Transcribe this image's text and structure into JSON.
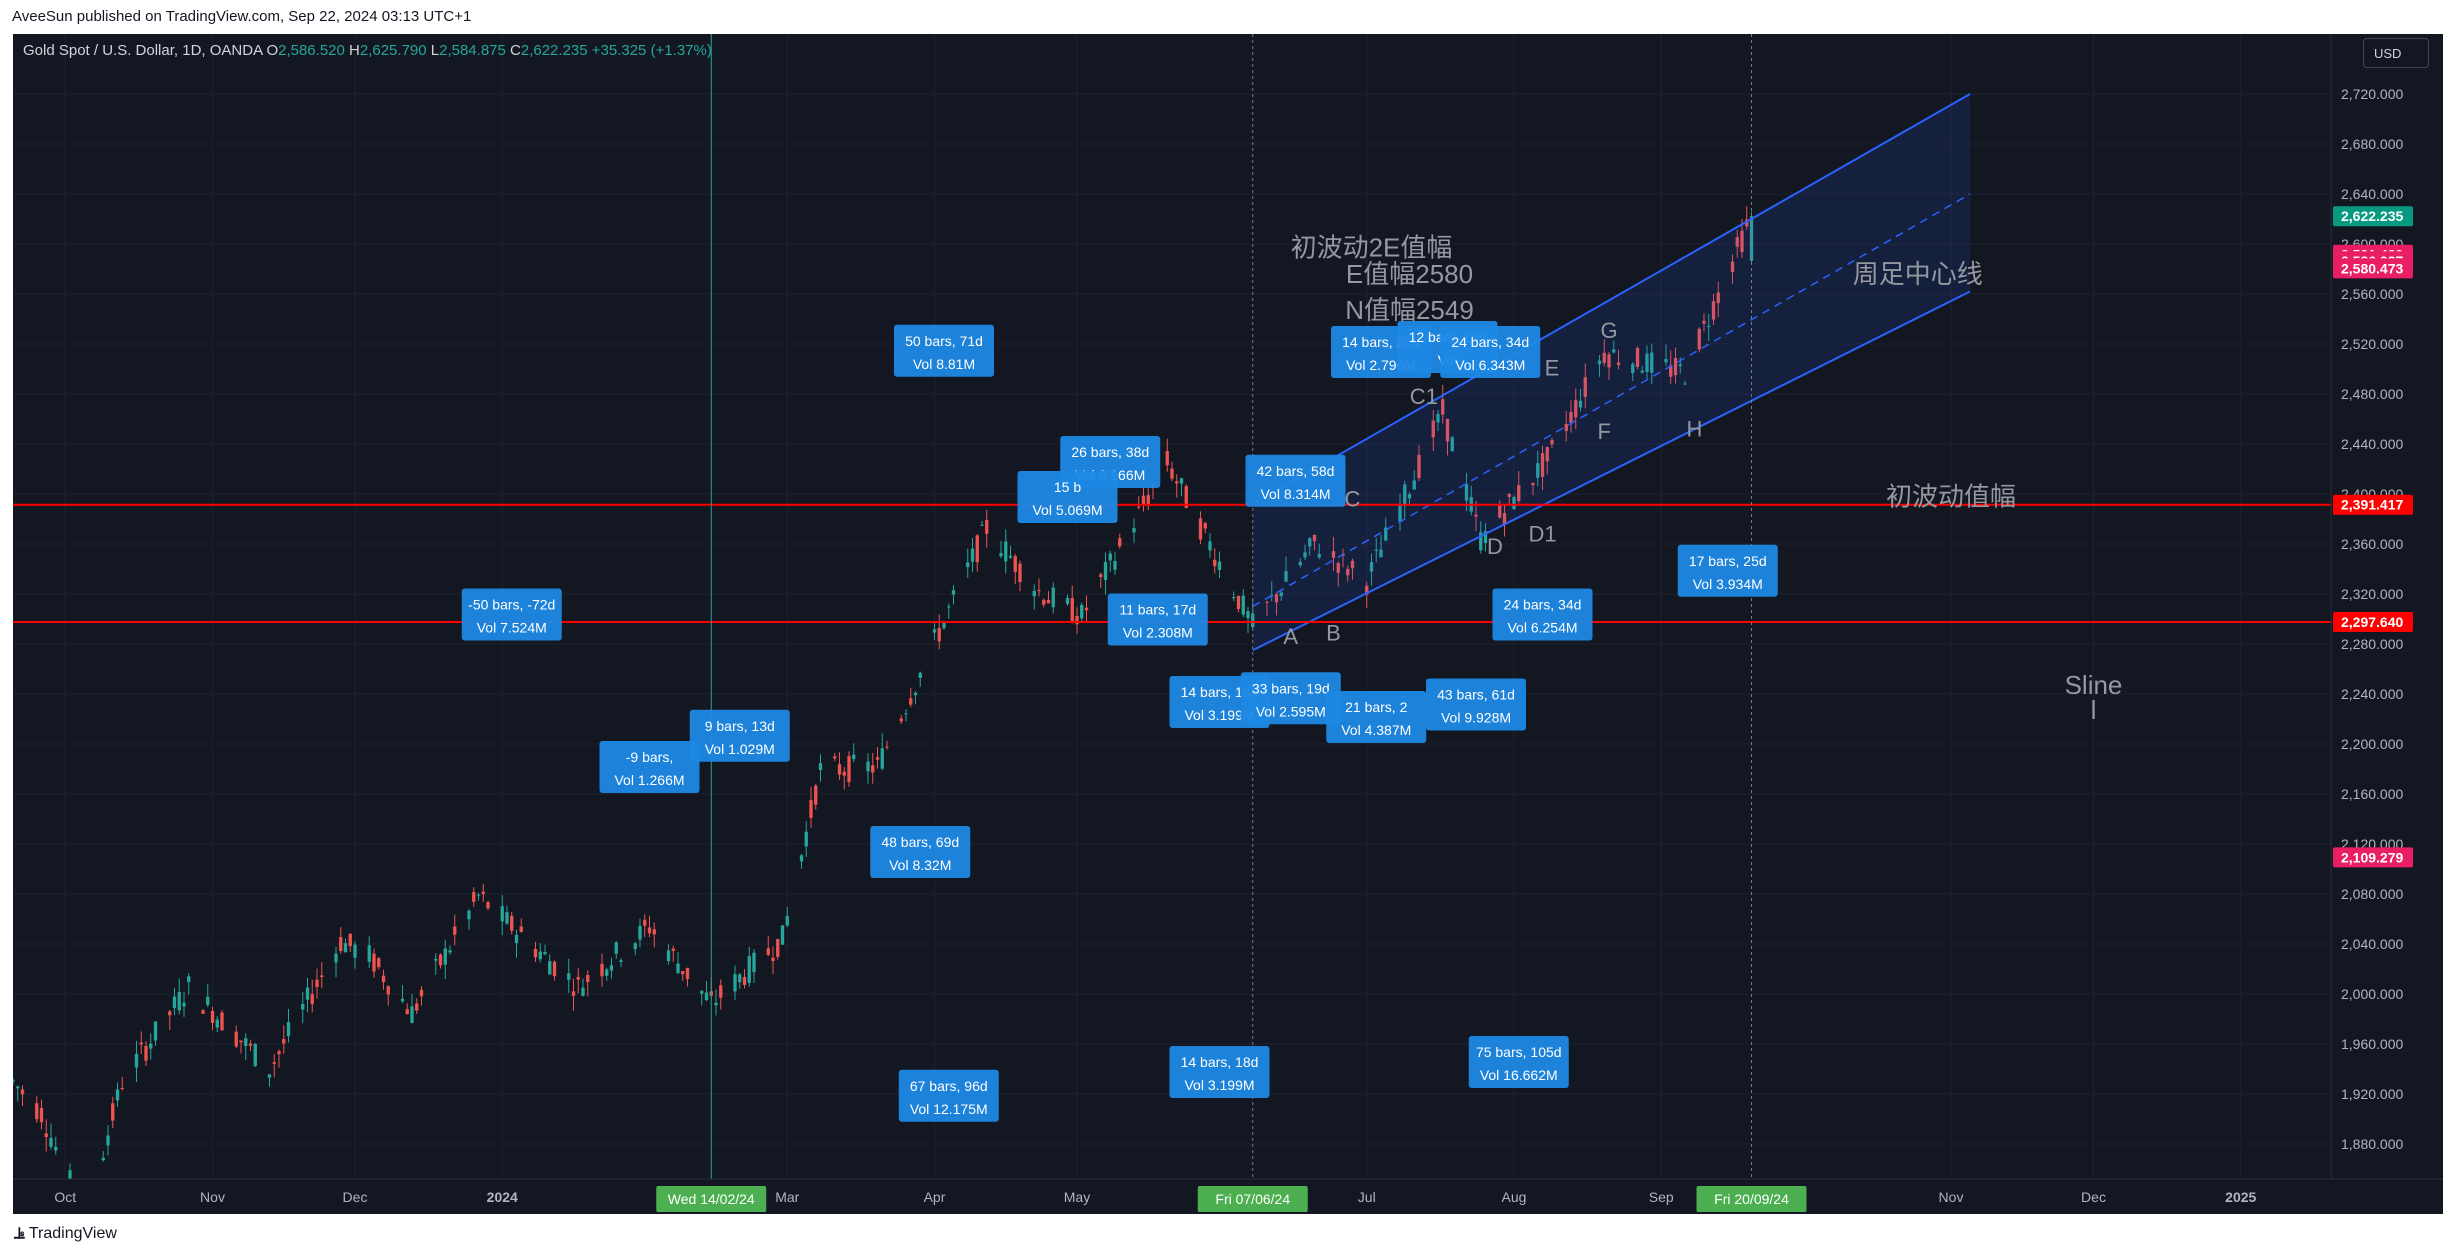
{
  "header": {
    "attribution": "AveeSun published on TradingView.com, Sep 22, 2024 03:13 UTC+1"
  },
  "footer": {
    "brand": "TradingView"
  },
  "legend": {
    "symbol": "Gold Spot / U.S. Dollar, 1D, OANDA",
    "o_label": "O",
    "o": "2,586.520",
    "h_label": "H",
    "h": "2,625.790",
    "l_label": "L",
    "l": "2,584.875",
    "c_label": "C",
    "c": "2,622.235",
    "change": "+35.325 (+1.37%)"
  },
  "currency_button": "USD",
  "colors": {
    "background": "#131722",
    "grid": "#1e222d",
    "up": "#26a69a",
    "down": "#ef5350",
    "channel": "#2962ff",
    "box": "#1e3a5f",
    "label_bg": "#1e88e5",
    "hline": "#ff0000",
    "pink": "#e91e63"
  },
  "chart_data": {
    "type": "candlestick",
    "instrument": "Gold Spot / U.S. Dollar",
    "interval": "1D",
    "source": "OANDA",
    "x_range": [
      "2023-09-20",
      "2025-01-20"
    ],
    "ylim": [
      1880,
      2740
    ],
    "y_ticks": [
      1880,
      1920,
      1960,
      2000,
      2040,
      2080,
      2120,
      2160,
      2200,
      2240,
      2280,
      2320,
      2360,
      2400,
      2440,
      2480,
      2520,
      2560,
      2600,
      2640,
      2680,
      2720
    ],
    "y_tick_labels": [
      "1,880.000",
      "1,920.000",
      "1,960.000",
      "2,000.000",
      "2,040.000",
      "2,080.000",
      "2,120.000",
      "2,160.000",
      "2,200.000",
      "2,240.000",
      "2,280.000",
      "2,320.000",
      "2,360.000",
      "2,400.000",
      "2,440.000",
      "2,480.000",
      "2,520.000",
      "2,560.000",
      "2,600.000",
      "2,640.000",
      "2,680.000",
      "2,720.000"
    ],
    "x_ticks": [
      {
        "date": "2023-10-01",
        "label": "Oct"
      },
      {
        "date": "2023-11-01",
        "label": "Nov"
      },
      {
        "date": "2023-12-01",
        "label": "Dec"
      },
      {
        "date": "2024-01-01",
        "label": "2024"
      },
      {
        "date": "2024-03-01",
        "label": "Mar"
      },
      {
        "date": "2024-04-01",
        "label": "Apr"
      },
      {
        "date": "2024-05-01",
        "label": "May"
      },
      {
        "date": "2024-07-01",
        "label": "Jul"
      },
      {
        "date": "2024-08-01",
        "label": "Aug"
      },
      {
        "date": "2024-09-01",
        "label": "Sep"
      },
      {
        "date": "2024-11-01",
        "label": "Nov"
      },
      {
        "date": "2024-12-01",
        "label": "Dec"
      },
      {
        "date": "2025-01-01",
        "label": "2025"
      }
    ],
    "x_partial_labels": [
      {
        "date": "2024-02-10",
        "label": "Fe"
      },
      {
        "date": "2024-10-01",
        "label": "t"
      }
    ],
    "x_markers": [
      {
        "date": "2024-02-14",
        "label": "Wed 14/02/24",
        "color": "#4caf50"
      },
      {
        "date": "2024-06-07",
        "label": "Fri 07/06/24",
        "color": "#4caf50"
      },
      {
        "date": "2024-09-20",
        "label": "Fri 20/09/24",
        "color": "#4caf50"
      }
    ],
    "price_path": [
      [
        "2023-09-20",
        1930
      ],
      [
        "2023-09-26",
        1905
      ],
      [
        "2023-10-05",
        1820
      ],
      [
        "2023-10-13",
        1930
      ],
      [
        "2023-10-27",
        2006
      ],
      [
        "2023-11-13",
        1940
      ],
      [
        "2023-11-28",
        2042
      ],
      [
        "2023-12-04",
        2030
      ],
      [
        "2023-12-13",
        1985
      ],
      [
        "2023-12-27",
        2078
      ],
      [
        "2024-01-17",
        2006
      ],
      [
        "2024-02-01",
        2054
      ],
      [
        "2024-02-14",
        1992
      ],
      [
        "2024-02-29",
        2044
      ],
      [
        "2024-03-08",
        2179
      ],
      [
        "2024-03-20",
        2182
      ],
      [
        "2024-04-12",
        2373
      ],
      [
        "2024-04-23",
        2322
      ],
      [
        "2024-05-02",
        2302
      ],
      [
        "2024-05-20",
        2425
      ],
      [
        "2024-06-07",
        2294
      ],
      [
        "2024-06-20",
        2360
      ],
      [
        "2024-07-01",
        2330
      ],
      [
        "2024-07-17",
        2465
      ],
      [
        "2024-07-25",
        2364
      ],
      [
        "2024-08-08",
        2427
      ],
      [
        "2024-08-20",
        2513
      ],
      [
        "2024-09-06",
        2497
      ],
      [
        "2024-09-20",
        2622
      ]
    ],
    "horizontal_lines": [
      {
        "price": 2391.417,
        "label": "2,391.417",
        "color": "#ff0000"
      },
      {
        "price": 2297.64,
        "label": "2,297.640",
        "color": "#ff0000"
      }
    ],
    "price_tags": [
      {
        "price": 2622.235,
        "label": "2,622.235",
        "color": "#089981"
      },
      {
        "price": 2591.439,
        "label": "2,591.439",
        "color": "#e91e63"
      },
      {
        "price": 2586.237,
        "label": "2,586.237",
        "color": "#e91e63"
      },
      {
        "price": 2580.473,
        "label": "2,580.473",
        "color": "#e91e63"
      },
      {
        "price": 2391.417,
        "label": "2,391.417",
        "color": "#ff0000"
      },
      {
        "price": 2297.64,
        "label": "2,297.640",
        "color": "#ff0000"
      },
      {
        "price": 2109.279,
        "label": "2,109.279",
        "color": "#e91e63"
      }
    ],
    "channel": {
      "upper": [
        [
          "2024-06-07",
          2392
        ],
        [
          "2024-11-05",
          2720
        ]
      ],
      "mid": [
        [
          "2024-06-07",
          2310
        ],
        [
          "2024-11-05",
          2640
        ]
      ],
      "lower": [
        [
          "2024-06-07",
          2275
        ],
        [
          "2024-11-05",
          2562
        ]
      ]
    },
    "annotations_text": [
      {
        "text": "初波动2E值幅",
        "date": "2024-07-02",
        "price": 2590
      },
      {
        "text": "E值幅2580",
        "date": "2024-07-10",
        "price": 2569
      },
      {
        "text": "N值幅2549",
        "date": "2024-07-10",
        "price": 2540
      },
      {
        "text": "周足中心线",
        "date": "2024-10-25",
        "price": 2569
      },
      {
        "text": "初波动值幅",
        "date": "2024-11-01",
        "price": 2391
      },
      {
        "text": "Sline",
        "date": "2024-12-01",
        "price": 2240
      },
      {
        "text": "l",
        "date": "2024-12-01",
        "price": 2220
      },
      {
        "text": "A",
        "date": "2024-06-15",
        "price": 2280
      },
      {
        "text": "B",
        "date": "2024-06-24",
        "price": 2283
      },
      {
        "text": "C",
        "date": "2024-06-28",
        "price": 2390
      },
      {
        "text": "C1",
        "date": "2024-07-13",
        "price": 2472
      },
      {
        "text": "D",
        "date": "2024-07-28",
        "price": 2352
      },
      {
        "text": "D1",
        "date": "2024-08-07",
        "price": 2362
      },
      {
        "text": "E",
        "date": "2024-08-09",
        "price": 2495
      },
      {
        "text": "F",
        "date": "2024-08-20",
        "price": 2444
      },
      {
        "text": "G",
        "date": "2024-08-21",
        "price": 2525
      },
      {
        "text": "H",
        "date": "2024-09-08",
        "price": 2446
      }
    ],
    "measure_labels": [
      {
        "line1": "50 bars, 71d",
        "line2": "Vol 8.81M",
        "date": "2024-04-03",
        "price": 2513
      },
      {
        "line1": "-50 bars, -72d",
        "line2": "Vol 7.524M",
        "date": "2024-01-03",
        "price": 2302
      },
      {
        "line1": "9 bars, 13d",
        "line2": "Vol 1.029M",
        "date": "2024-02-20",
        "price": 2205
      },
      {
        "line1": "-9 bars,",
        "line2": "Vol 1.266M",
        "date": "2024-02-01",
        "price": 2180
      },
      {
        "line1": "48 bars, 69d",
        "line2": "Vol 8.32M",
        "date": "2024-03-29",
        "price": 2112
      },
      {
        "line1": "67 bars, 96d",
        "line2": "Vol 12.175M",
        "date": "2024-04-04",
        "price": 1917
      },
      {
        "line1": "26 bars, 38d",
        "line2": "Vol 6.166M",
        "date": "2024-05-08",
        "price": 2424
      },
      {
        "line1": "15 b",
        "line2": "Vol 5.069M",
        "date": "2024-04-29",
        "price": 2396
      },
      {
        "line1": "11 bars, 17d",
        "line2": "Vol 2.308M",
        "date": "2024-05-18",
        "price": 2298
      },
      {
        "line1": "14 bars, 18d",
        "line2": "Vol 3.199M",
        "date": "2024-05-31",
        "price": 2232
      },
      {
        "line1": "14 bars, 18d",
        "line2": "Vol 3.199M",
        "date": "2024-05-31",
        "price": 1936
      },
      {
        "line1": "42 bars, 58d",
        "line2": "Vol 8.314M",
        "date": "2024-06-16",
        "price": 2409
      },
      {
        "line1": "33 bars, 19d",
        "line2": "Vol 2.595M",
        "date": "2024-06-15",
        "price": 2235
      },
      {
        "line1": "21 bars, 2",
        "line2": "Vol 4.387M",
        "date": "2024-07-03",
        "price": 2220
      },
      {
        "line1": "43 bars, 61d",
        "line2": "Vol 9.928M",
        "date": "2024-07-24",
        "price": 2230
      },
      {
        "line1": "14 bars, 20d",
        "line2": "Vol 2.796M",
        "date": "2024-07-04",
        "price": 2512
      },
      {
        "line1": "12 bars, 16d",
        "line2": "Vol",
        "date": "2024-07-18",
        "price": 2516
      },
      {
        "line1": "24 bars, 34d",
        "line2": "Vol 6.343M",
        "date": "2024-07-27",
        "price": 2512
      },
      {
        "line1": "17 bars, 25d",
        "line2": "Vol 3.934M",
        "date": "2024-09-15",
        "price": 2337
      },
      {
        "line1": "24 bars, 34d",
        "line2": "Vol 6.254M",
        "date": "2024-08-07",
        "price": 2302
      },
      {
        "line1": "75 bars, 105d",
        "line2": "Vol 16.662M",
        "date": "2024-08-02",
        "price": 1944
      }
    ]
  }
}
